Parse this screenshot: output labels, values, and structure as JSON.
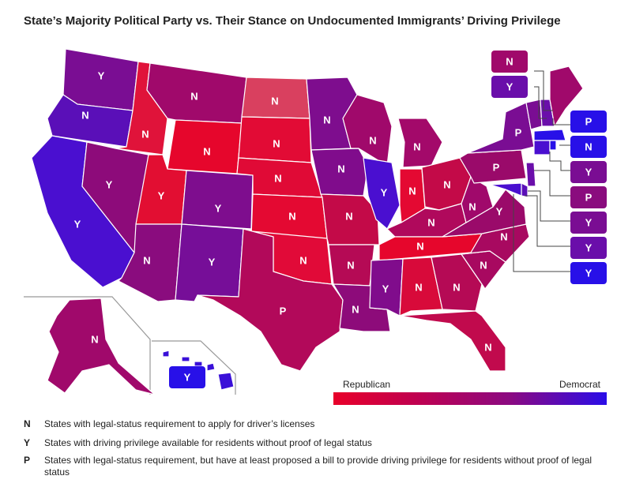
{
  "title": "State’s Majority Political Party vs. Their Stance on Undocumented Immigrants’ Driving Privilege",
  "colors": {
    "strong_republican": "#e8062c",
    "lean_republican": "#c3094d",
    "mixed": "#9a0a6a",
    "lean_democrat": "#7a0d93",
    "strong_democrat": "#4a0fd0",
    "democrat_blue": "#2810e8",
    "north_dakota": "#d9405f"
  },
  "states": {
    "WA": "Y",
    "OR": "N",
    "CA": "Y",
    "ID": "N",
    "NV": "Y",
    "MT": "N",
    "WY": "N",
    "UT": "Y",
    "AZ": "N",
    "CO": "Y",
    "NM": "Y",
    "ND": "N",
    "SD": "N",
    "NE": "N",
    "KS": "N",
    "OK": "N",
    "TX": "P",
    "MN": "N",
    "IA": "N",
    "MO": "N",
    "AR": "N",
    "LA": "N",
    "WI": "N",
    "IL": "Y",
    "MI": "N",
    "IN": "N",
    "OH": "N",
    "KY": "N",
    "TN": "N",
    "MS": "Y",
    "AL": "N",
    "GA": "N",
    "FL": "N",
    "SC": "N",
    "NC": "N",
    "VA": "Y",
    "WV": "N",
    "PA": "P",
    "NY": "P",
    "AK": "N",
    "HI": "Y"
  },
  "callouts": {
    "ME": "N",
    "NH": "Y",
    "MA": "P",
    "RI": "N",
    "CT": "Y",
    "NJ": "P",
    "DE": "Y",
    "MD": "Y",
    "DC": "Y"
  },
  "scale": {
    "left_label": "Republican",
    "right_label": "Democrat"
  },
  "legend": [
    {
      "code": "N",
      "text": "States with legal-status requirement to apply for driver’s licenses"
    },
    {
      "code": "Y",
      "text": "States with driving privilege available for residents without proof of legal status"
    },
    {
      "code": "P",
      "text": "States with legal-status requirement, but have at least proposed a bill to provide driving privilege for residents without proof of legal status"
    }
  ]
}
